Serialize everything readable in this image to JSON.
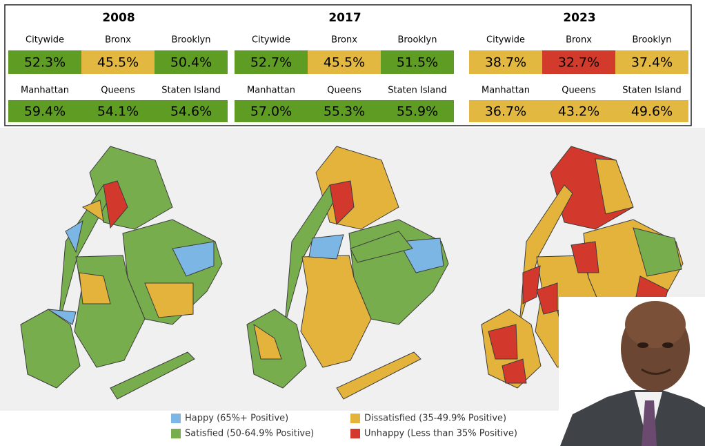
{
  "panels": [
    {
      "year": "2008",
      "cells": [
        {
          "name": "Citywide",
          "value": "52.3%",
          "color": "#5e9c24"
        },
        {
          "name": "Bronx",
          "value": "45.5%",
          "color": "#e3b840"
        },
        {
          "name": "Brooklyn",
          "value": "50.4%",
          "color": "#5e9c24"
        },
        {
          "name": "Manhattan",
          "value": "59.4%",
          "color": "#5e9c24"
        },
        {
          "name": "Queens",
          "value": "54.1%",
          "color": "#5e9c24"
        },
        {
          "name": "Staten Island",
          "value": "54.6%",
          "color": "#5e9c24"
        }
      ]
    },
    {
      "year": "2017",
      "cells": [
        {
          "name": "Citywide",
          "value": "52.7%",
          "color": "#5e9c24"
        },
        {
          "name": "Bronx",
          "value": "45.5%",
          "color": "#e3b840"
        },
        {
          "name": "Brooklyn",
          "value": "51.5%",
          "color": "#5e9c24"
        },
        {
          "name": "Manhattan",
          "value": "57.0%",
          "color": "#5e9c24"
        },
        {
          "name": "Queens",
          "value": "55.3%",
          "color": "#5e9c24"
        },
        {
          "name": "Staten Island",
          "value": "55.9%",
          "color": "#5e9c24"
        }
      ]
    },
    {
      "year": "2023",
      "cells": [
        {
          "name": "Citywide",
          "value": "38.7%",
          "color": "#e3b840"
        },
        {
          "name": "Bronx",
          "value": "32.7%",
          "color": "#d23a2c"
        },
        {
          "name": "Brooklyn",
          "value": "37.4%",
          "color": "#e3b840"
        },
        {
          "name": "Manhattan",
          "value": "36.7%",
          "color": "#e3b840"
        },
        {
          "name": "Queens",
          "value": "43.2%",
          "color": "#e3b840"
        },
        {
          "name": "Staten Island",
          "value": "49.6%",
          "color": "#e3b840"
        }
      ]
    }
  ],
  "legend": [
    {
      "label": "Happy (65%+ Positive)",
      "color": "#7cb6e4"
    },
    {
      "label": "Satisfied (50-64.9% Positive)",
      "color": "#77ad4c"
    },
    {
      "label": "Dissatisfied (35-49.9% Positive)",
      "color": "#e3b33c"
    },
    {
      "label": "Unhappy (Less than 35% Positive)",
      "color": "#d2382c"
    }
  ]
}
